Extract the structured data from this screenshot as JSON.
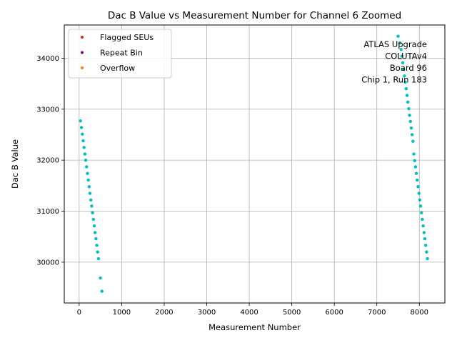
{
  "chart_data": {
    "type": "scatter",
    "title": "Dac B Value vs Measurement Number for Channel 6 Zoomed",
    "xlabel": "Measurement Number",
    "ylabel": "Dac B Value",
    "xlim": [
      -350,
      8600
    ],
    "ylim": [
      29200,
      34650
    ],
    "xticks": [
      0,
      1000,
      2000,
      3000,
      4000,
      5000,
      6000,
      7000,
      8000
    ],
    "yticks": [
      30000,
      31000,
      32000,
      33000,
      34000
    ],
    "grid": true,
    "legend_position": "top-left",
    "legend": [
      {
        "label": "Flagged SEUs",
        "color": "#d62728"
      },
      {
        "label": "Repeat Bin",
        "color": "#800080"
      },
      {
        "label": "Overflow",
        "color": "#ff7f0e"
      }
    ],
    "annotation": [
      "ATLAS Upgrade",
      "COLUTAv4",
      "Board 96",
      "Chip 1, Run 183"
    ],
    "series": [
      {
        "name": "Dac B",
        "color": "#00bfbf",
        "points": [
          [
            30,
            32770
          ],
          [
            55,
            32640
          ],
          [
            75,
            32510
          ],
          [
            95,
            32380
          ],
          [
            115,
            32250
          ],
          [
            135,
            32120
          ],
          [
            155,
            32000
          ],
          [
            175,
            31870
          ],
          [
            195,
            31740
          ],
          [
            215,
            31610
          ],
          [
            235,
            31480
          ],
          [
            255,
            31350
          ],
          [
            275,
            31220
          ],
          [
            295,
            31100
          ],
          [
            315,
            30970
          ],
          [
            335,
            30840
          ],
          [
            355,
            30710
          ],
          [
            375,
            30580
          ],
          [
            395,
            30460
          ],
          [
            415,
            30330
          ],
          [
            435,
            30200
          ],
          [
            455,
            30070
          ],
          [
            500,
            29690
          ],
          [
            535,
            29430
          ],
          [
            7500,
            34430
          ],
          [
            7540,
            34300
          ],
          [
            7570,
            34170
          ],
          [
            7590,
            34040
          ],
          [
            7610,
            33910
          ],
          [
            7630,
            33780
          ],
          [
            7650,
            33650
          ],
          [
            7670,
            33530
          ],
          [
            7690,
            33400
          ],
          [
            7710,
            33270
          ],
          [
            7730,
            33140
          ],
          [
            7750,
            33010
          ],
          [
            7770,
            32880
          ],
          [
            7790,
            32760
          ],
          [
            7810,
            32630
          ],
          [
            7830,
            32500
          ],
          [
            7850,
            32370
          ],
          [
            7870,
            32120
          ],
          [
            7890,
            31990
          ],
          [
            7910,
            31870
          ],
          [
            7930,
            31740
          ],
          [
            7950,
            31610
          ],
          [
            7970,
            31480
          ],
          [
            7990,
            31350
          ],
          [
            8010,
            31220
          ],
          [
            8030,
            31100
          ],
          [
            8050,
            30970
          ],
          [
            8070,
            30840
          ],
          [
            8090,
            30710
          ],
          [
            8110,
            30580
          ],
          [
            8130,
            30460
          ],
          [
            8150,
            30330
          ],
          [
            8170,
            30200
          ],
          [
            8190,
            30070
          ]
        ]
      }
    ]
  }
}
